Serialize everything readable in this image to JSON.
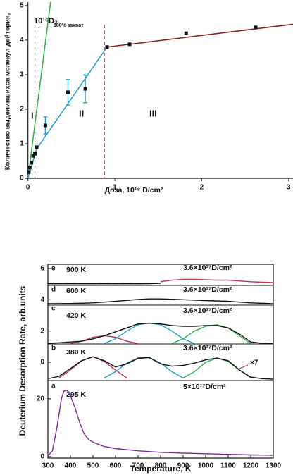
{
  "chart_data": [
    {
      "type": "scatter",
      "y_unit_label": "10¹⁶D₂",
      "ylabel": "Количество выделившихся молекул дейтерия,",
      "xlabel": "Доза,  10¹⁸ D/cm²",
      "xlim": [
        -0.03,
        3.05
      ],
      "ylim": [
        0,
        5.1
      ],
      "xticks": [
        0,
        1,
        2,
        3
      ],
      "yticks": [
        0,
        1,
        2,
        3,
        4,
        5
      ],
      "points": {
        "color": "#111111",
        "x": [
          0.01,
          0.02,
          0.04,
          0.06,
          0.08,
          0.1,
          0.2,
          0.46,
          0.66,
          0.91,
          1.17,
          1.82,
          2.62
        ],
        "values": [
          0.18,
          0.31,
          0.45,
          0.65,
          0.71,
          0.9,
          1.53,
          2.49,
          2.59,
          3.8,
          3.88,
          4.2,
          4.37
        ],
        "errors": [
          null,
          null,
          null,
          null,
          null,
          null,
          0.25,
          0.37,
          0.4,
          null,
          null,
          null,
          null
        ],
        "error_color": "#1e9fd0"
      },
      "lines": [
        {
          "label": "100% захват",
          "color": "#2db34a",
          "x": [
            0,
            0.26
          ],
          "values": [
            0,
            5.1
          ]
        },
        {
          "color": "#1e9fd0",
          "x": [
            0,
            0.1,
            0.91
          ],
          "values": [
            0,
            0.85,
            3.8
          ]
        },
        {
          "color": "#8b1a1a",
          "x": [
            0.91,
            3.05
          ],
          "values": [
            3.8,
            4.46
          ]
        }
      ],
      "dividers": {
        "x": [
          0.08,
          0.88
        ],
        "color": "#b03030"
      },
      "regions": [
        {
          "label": "I",
          "color": "#222222"
        },
        {
          "label": "II",
          "color": "#4a4aa8"
        },
        {
          "label": "III",
          "color": "#c0334d"
        }
      ]
    },
    {
      "type": "line",
      "xlabel": "Temperature, K",
      "ylabel": "Deuterium Desorption Rate, arb.units",
      "xlim": [
        300,
        1300
      ],
      "xticks": [
        300,
        400,
        500,
        600,
        700,
        800,
        900,
        1000,
        1100,
        1200,
        1300
      ],
      "ylim": [
        -0.5,
        26.3
      ],
      "yticks": [
        0,
        20
      ],
      "y2lim": [
        -1.17,
        6.27
      ],
      "y2ticks": [
        0,
        2,
        4,
        6
      ],
      "panels": [
        {
          "label": "e",
          "temperature": "900 K",
          "dose": "3.6×10¹⁷D/cm²"
        },
        {
          "label": "d",
          "temperature": "600 K",
          "dose": "3.6×10¹⁷D/cm²"
        },
        {
          "label": "c",
          "temperature": "420 K",
          "dose": "3.6×10¹⁷D/cm²"
        },
        {
          "label": "b",
          "temperature": "380 K",
          "dose": "3.6×10¹⁷D/cm²"
        },
        {
          "label": "a",
          "temperature": "295 K",
          "dose": "5×10¹⁷D/cm²"
        }
      ],
      "annotation": {
        "text": "×7",
        "color": "#c0334d"
      },
      "series": [
        {
          "axis": "y2",
          "color": "#111111",
          "x": [
            300,
            350,
            400,
            450,
            500,
            550,
            600,
            650,
            700,
            750,
            800
          ],
          "values": [
            5.02,
            5.02,
            5.03,
            5.02,
            5.02,
            5.03,
            5.02,
            5.03,
            5.02,
            5.03,
            5.05
          ]
        },
        {
          "axis": "y2",
          "color": "#c0334d",
          "x": [
            800,
            850,
            900,
            950,
            1000,
            1050,
            1100,
            1150,
            1200,
            1250,
            1300
          ],
          "values": [
            5.15,
            5.25,
            5.3,
            5.3,
            5.28,
            5.25,
            5.25,
            5.2,
            5.15,
            5.12,
            5.1
          ]
        },
        {
          "axis": "y2",
          "color": "#111111",
          "x": [
            300,
            400,
            500,
            600,
            700,
            750,
            800,
            900,
            1000,
            1100,
            1200,
            1300
          ],
          "values": [
            3.75,
            3.76,
            3.8,
            3.9,
            4.02,
            4.05,
            4.05,
            4.0,
            3.95,
            3.9,
            3.8,
            3.75
          ]
        },
        {
          "axis": "y2",
          "color": "#c0334d",
          "x": [
            400,
            450,
            500,
            550,
            600,
            650,
            700
          ],
          "values": [
            1.2,
            1.35,
            1.6,
            1.7,
            1.6,
            1.35,
            1.2
          ]
        },
        {
          "axis": "y2",
          "color": "#1e9fd0",
          "x": [
            550,
            600,
            650,
            700,
            750,
            800,
            850,
            900,
            950
          ],
          "values": [
            1.2,
            1.5,
            2.0,
            2.4,
            2.5,
            2.4,
            2.0,
            1.5,
            1.2
          ]
        },
        {
          "axis": "y2",
          "color": "#2db34a",
          "x": [
            850,
            900,
            950,
            1000,
            1050,
            1100,
            1150,
            1200
          ],
          "values": [
            1.2,
            1.5,
            2.0,
            2.3,
            2.4,
            2.2,
            1.7,
            1.2
          ]
        },
        {
          "axis": "y2",
          "color": "#111111",
          "x": [
            300,
            350,
            400,
            450,
            500,
            550,
            600,
            650,
            700,
            750,
            800,
            850,
            900,
            950,
            1000,
            1050,
            1100,
            1150,
            1200,
            1250,
            1300
          ],
          "values": [
            1.22,
            1.25,
            1.3,
            1.35,
            1.5,
            1.7,
            1.95,
            2.2,
            2.45,
            2.5,
            2.45,
            2.35,
            2.3,
            2.3,
            2.35,
            2.35,
            2.2,
            1.8,
            1.3,
            1.22,
            1.2
          ]
        },
        {
          "axis": "y2",
          "color": "#c0334d",
          "x": [
            350,
            400,
            450,
            500,
            550,
            600,
            650
          ],
          "values": [
            -1.0,
            -0.5,
            0.1,
            0.36,
            0.05,
            -0.5,
            -1.0
          ]
        },
        {
          "axis": "y2",
          "color": "#1e9fd0",
          "x": [
            550,
            600,
            650,
            700,
            750,
            800,
            850,
            900
          ],
          "values": [
            -1.0,
            -0.6,
            -0.05,
            0.28,
            0.3,
            -0.05,
            -0.6,
            -1.0
          ]
        },
        {
          "axis": "y2",
          "color": "#2db34a",
          "x": [
            900,
            950,
            1000,
            1050,
            1100,
            1150,
            1200
          ],
          "values": [
            -1.0,
            -0.6,
            0.0,
            0.27,
            0.05,
            -0.5,
            -1.0
          ]
        },
        {
          "axis": "y2",
          "color": "#111111",
          "x": [
            300,
            350,
            400,
            450,
            500,
            550,
            600,
            650,
            700,
            750,
            800,
            850,
            900,
            950,
            1000,
            1050,
            1100,
            1150,
            1200,
            1250,
            1300
          ],
          "values": [
            -1.05,
            -0.9,
            -0.4,
            0.1,
            0.35,
            0.1,
            -0.3,
            -0.1,
            0.25,
            0.3,
            -0.1,
            -0.25,
            -0.2,
            -0.05,
            0.15,
            0.27,
            0.1,
            -0.5,
            -0.95,
            -1.05,
            -1.08
          ]
        },
        {
          "color": "#7a2a9a",
          "x": [
            300,
            320,
            340,
            360,
            370,
            380,
            390,
            400,
            420,
            440,
            460,
            480,
            500,
            550,
            600,
            700,
            800,
            900,
            1000,
            1100,
            1200,
            1300
          ],
          "values": [
            0.3,
            2,
            10,
            20,
            22.5,
            23,
            22.5,
            21,
            17,
            12,
            8,
            6,
            5,
            3.5,
            2.8,
            2,
            1.5,
            1.2,
            1,
            0.8,
            0.6,
            0.5
          ]
        }
      ]
    }
  ]
}
